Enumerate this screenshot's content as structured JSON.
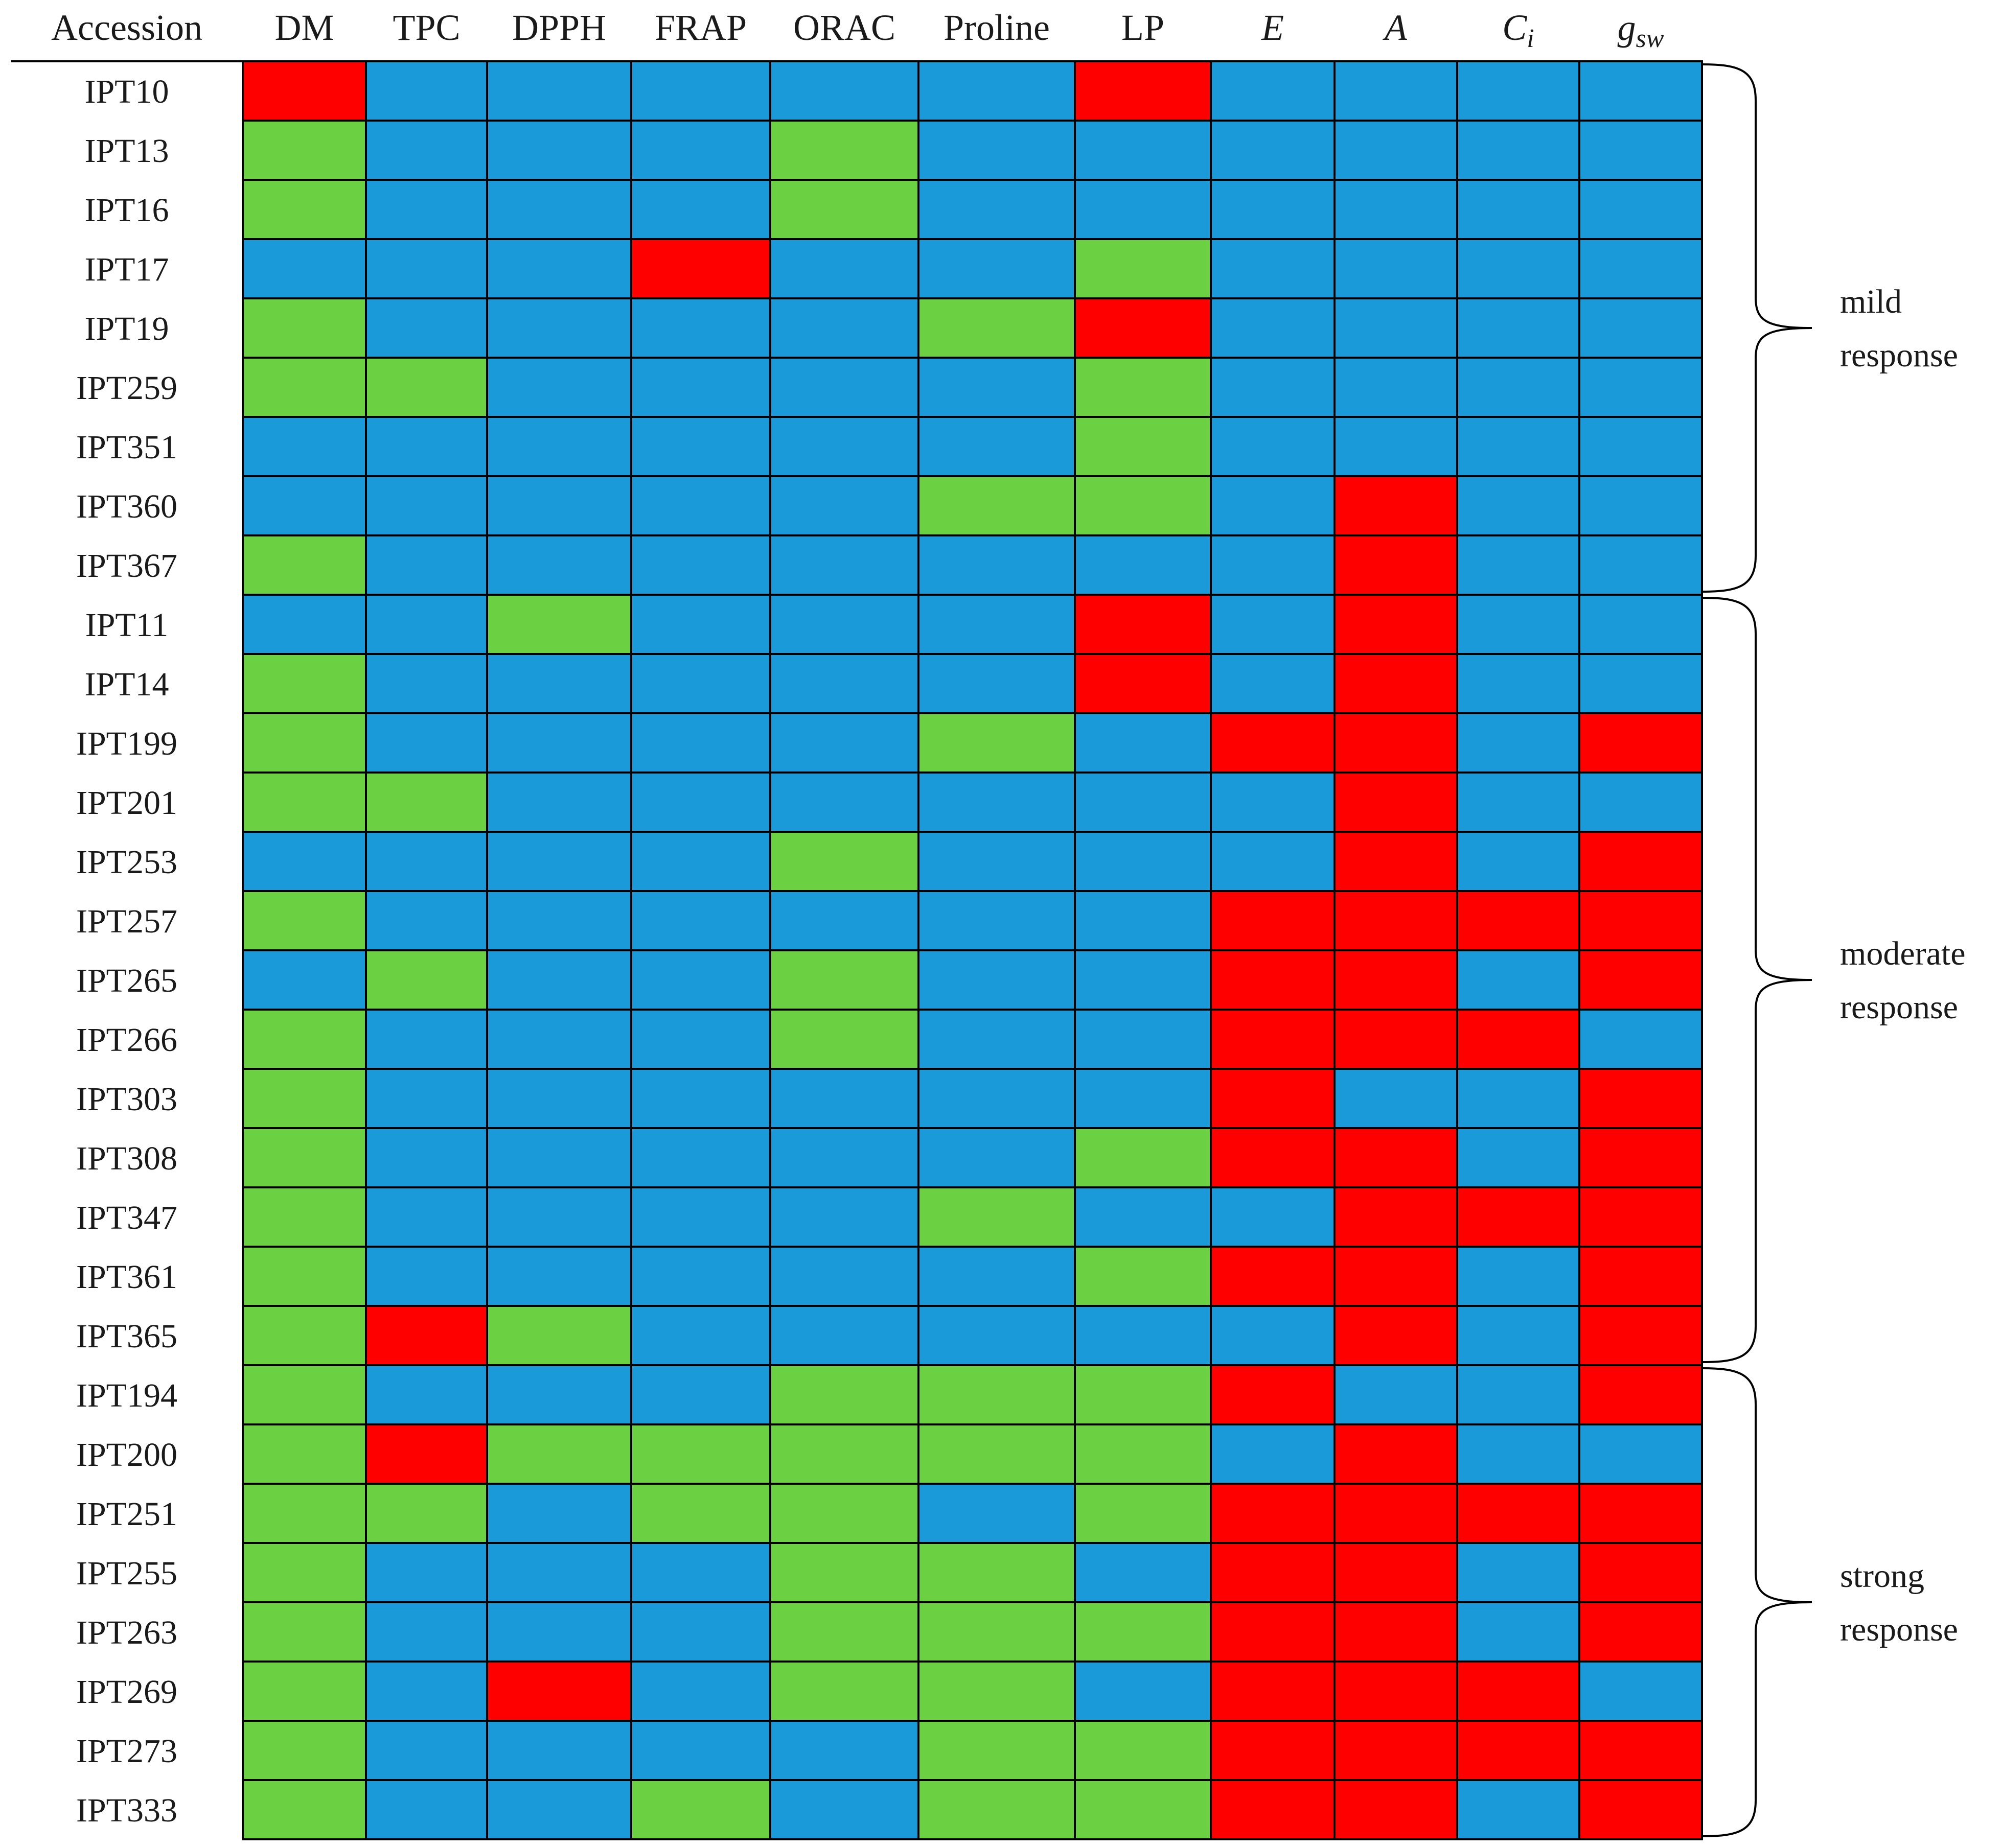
{
  "chart_data": {
    "type": "heatmap",
    "title": "",
    "row_header": "Accession",
    "columns": [
      {
        "label": "DM",
        "italic": false
      },
      {
        "label": "TPC",
        "italic": false
      },
      {
        "label": "DPPH",
        "italic": false
      },
      {
        "label": "FRAP",
        "italic": false
      },
      {
        "label": "ORAC",
        "italic": false
      },
      {
        "label": "Proline",
        "italic": false
      },
      {
        "label": "LP",
        "italic": false
      },
      {
        "label": "E",
        "italic": true
      },
      {
        "label": "A",
        "italic": true
      },
      {
        "label": "C",
        "sub": "i",
        "italic": true
      },
      {
        "label": "g",
        "sub": "sw",
        "italic": true
      }
    ],
    "category_colors": {
      "B": "#1a9ad8",
      "G": "#6cd043",
      "R": "#ff0000"
    },
    "rows": [
      {
        "accession": "IPT10",
        "cells": [
          "R",
          "B",
          "B",
          "B",
          "B",
          "B",
          "R",
          "B",
          "B",
          "B",
          "B"
        ]
      },
      {
        "accession": "IPT13",
        "cells": [
          "G",
          "B",
          "B",
          "B",
          "G",
          "B",
          "B",
          "B",
          "B",
          "B",
          "B"
        ]
      },
      {
        "accession": "IPT16",
        "cells": [
          "G",
          "B",
          "B",
          "B",
          "G",
          "B",
          "B",
          "B",
          "B",
          "B",
          "B"
        ]
      },
      {
        "accession": "IPT17",
        "cells": [
          "B",
          "B",
          "B",
          "R",
          "B",
          "B",
          "G",
          "B",
          "B",
          "B",
          "B"
        ]
      },
      {
        "accession": "IPT19",
        "cells": [
          "G",
          "B",
          "B",
          "B",
          "B",
          "G",
          "R",
          "B",
          "B",
          "B",
          "B"
        ]
      },
      {
        "accession": "IPT259",
        "cells": [
          "G",
          "G",
          "B",
          "B",
          "B",
          "B",
          "G",
          "B",
          "B",
          "B",
          "B"
        ]
      },
      {
        "accession": "IPT351",
        "cells": [
          "B",
          "B",
          "B",
          "B",
          "B",
          "B",
          "G",
          "B",
          "B",
          "B",
          "B"
        ]
      },
      {
        "accession": "IPT360",
        "cells": [
          "B",
          "B",
          "B",
          "B",
          "B",
          "G",
          "G",
          "B",
          "R",
          "B",
          "B"
        ]
      },
      {
        "accession": "IPT367",
        "cells": [
          "G",
          "B",
          "B",
          "B",
          "B",
          "B",
          "B",
          "B",
          "R",
          "B",
          "B"
        ]
      },
      {
        "accession": "IPT11",
        "cells": [
          "B",
          "B",
          "G",
          "B",
          "B",
          "B",
          "R",
          "B",
          "R",
          "B",
          "B"
        ]
      },
      {
        "accession": "IPT14",
        "cells": [
          "G",
          "B",
          "B",
          "B",
          "B",
          "B",
          "R",
          "B",
          "R",
          "B",
          "B"
        ]
      },
      {
        "accession": "IPT199",
        "cells": [
          "G",
          "B",
          "B",
          "B",
          "B",
          "G",
          "B",
          "R",
          "R",
          "B",
          "R"
        ]
      },
      {
        "accession": "IPT201",
        "cells": [
          "G",
          "G",
          "B",
          "B",
          "B",
          "B",
          "B",
          "B",
          "R",
          "B",
          "B"
        ]
      },
      {
        "accession": "IPT253",
        "cells": [
          "B",
          "B",
          "B",
          "B",
          "G",
          "B",
          "B",
          "B",
          "R",
          "B",
          "R"
        ]
      },
      {
        "accession": "IPT257",
        "cells": [
          "G",
          "B",
          "B",
          "B",
          "B",
          "B",
          "B",
          "R",
          "R",
          "R",
          "R"
        ]
      },
      {
        "accession": "IPT265",
        "cells": [
          "B",
          "G",
          "B",
          "B",
          "G",
          "B",
          "B",
          "R",
          "R",
          "B",
          "R"
        ]
      },
      {
        "accession": "IPT266",
        "cells": [
          "G",
          "B",
          "B",
          "B",
          "G",
          "B",
          "B",
          "R",
          "R",
          "R",
          "B"
        ]
      },
      {
        "accession": "IPT303",
        "cells": [
          "G",
          "B",
          "B",
          "B",
          "B",
          "B",
          "B",
          "R",
          "B",
          "B",
          "R"
        ]
      },
      {
        "accession": "IPT308",
        "cells": [
          "G",
          "B",
          "B",
          "B",
          "B",
          "B",
          "G",
          "R",
          "R",
          "B",
          "R"
        ]
      },
      {
        "accession": "IPT347",
        "cells": [
          "G",
          "B",
          "B",
          "B",
          "B",
          "G",
          "B",
          "B",
          "R",
          "R",
          "R"
        ]
      },
      {
        "accession": "IPT361",
        "cells": [
          "G",
          "B",
          "B",
          "B",
          "B",
          "B",
          "G",
          "R",
          "R",
          "B",
          "R"
        ]
      },
      {
        "accession": "IPT365",
        "cells": [
          "G",
          "R",
          "G",
          "B",
          "B",
          "B",
          "B",
          "B",
          "R",
          "B",
          "R"
        ]
      },
      {
        "accession": "IPT194",
        "cells": [
          "G",
          "B",
          "B",
          "B",
          "G",
          "G",
          "G",
          "R",
          "B",
          "B",
          "R"
        ]
      },
      {
        "accession": "IPT200",
        "cells": [
          "G",
          "R",
          "G",
          "G",
          "G",
          "G",
          "G",
          "B",
          "R",
          "B",
          "B"
        ]
      },
      {
        "accession": "IPT251",
        "cells": [
          "G",
          "G",
          "B",
          "G",
          "G",
          "B",
          "G",
          "R",
          "R",
          "R",
          "R"
        ]
      },
      {
        "accession": "IPT255",
        "cells": [
          "G",
          "B",
          "B",
          "B",
          "G",
          "G",
          "B",
          "R",
          "R",
          "B",
          "R"
        ]
      },
      {
        "accession": "IPT263",
        "cells": [
          "G",
          "B",
          "B",
          "B",
          "G",
          "G",
          "G",
          "R",
          "R",
          "B",
          "R"
        ]
      },
      {
        "accession": "IPT269",
        "cells": [
          "G",
          "B",
          "R",
          "B",
          "G",
          "G",
          "B",
          "R",
          "R",
          "R",
          "B"
        ]
      },
      {
        "accession": "IPT273",
        "cells": [
          "G",
          "B",
          "B",
          "B",
          "B",
          "G",
          "G",
          "R",
          "R",
          "R",
          "R"
        ]
      },
      {
        "accession": "IPT333",
        "cells": [
          "G",
          "B",
          "B",
          "G",
          "B",
          "G",
          "G",
          "R",
          "R",
          "B",
          "R"
        ]
      }
    ],
    "groups": [
      {
        "label_line1": "mild",
        "label_line2": "response",
        "first_row": 0,
        "last_row": 8
      },
      {
        "label_line1": "moderate",
        "label_line2": "response",
        "first_row": 9,
        "last_row": 21
      },
      {
        "label_line1": "strong",
        "label_line2": "response",
        "first_row": 22,
        "last_row": 29
      }
    ]
  }
}
